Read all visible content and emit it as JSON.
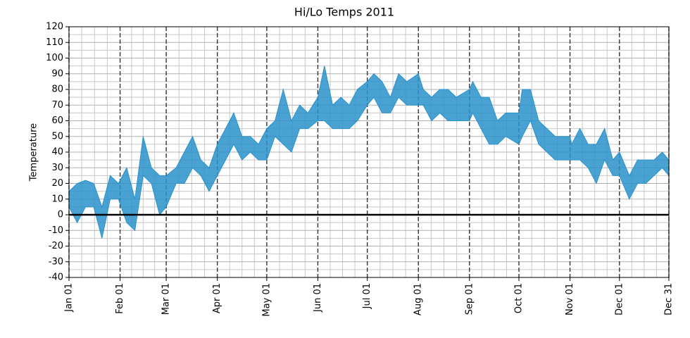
{
  "chart_data": {
    "type": "band",
    "title": "Hi/Lo Temps 2011",
    "ylabel": "Temperature",
    "x": [
      0,
      5,
      10,
      15,
      20,
      25,
      30,
      35,
      40,
      45,
      50,
      55,
      59,
      65,
      70,
      75,
      80,
      85,
      90,
      95,
      100,
      105,
      110,
      115,
      120,
      125,
      130,
      135,
      140,
      145,
      151,
      155,
      160,
      165,
      170,
      175,
      181,
      185,
      190,
      195,
      200,
      205,
      212,
      215,
      220,
      225,
      230,
      235,
      243,
      245,
      250,
      255,
      260,
      265,
      273,
      275,
      280,
      285,
      290,
      295,
      304,
      305,
      310,
      315,
      320,
      325,
      330,
      334,
      340,
      345,
      350,
      355,
      360,
      364
    ],
    "high": [
      15,
      20,
      22,
      20,
      5,
      25,
      20,
      30,
      10,
      50,
      30,
      25,
      25,
      30,
      40,
      50,
      35,
      30,
      45,
      55,
      65,
      50,
      50,
      45,
      55,
      60,
      80,
      60,
      70,
      65,
      75,
      95,
      70,
      75,
      70,
      80,
      85,
      90,
      85,
      75,
      90,
      85,
      90,
      80,
      75,
      80,
      80,
      75,
      80,
      85,
      75,
      75,
      60,
      65,
      65,
      80,
      80,
      60,
      55,
      50,
      50,
      45,
      55,
      45,
      45,
      55,
      35,
      40,
      25,
      35,
      35,
      35,
      40,
      35
    ],
    "low": [
      5,
      -5,
      5,
      5,
      -15,
      10,
      10,
      -5,
      -10,
      25,
      20,
      0,
      5,
      20,
      20,
      30,
      25,
      15,
      25,
      35,
      45,
      35,
      40,
      35,
      35,
      50,
      45,
      40,
      55,
      55,
      60,
      60,
      55,
      55,
      55,
      60,
      70,
      75,
      65,
      65,
      75,
      70,
      70,
      70,
      60,
      65,
      60,
      60,
      60,
      65,
      55,
      45,
      45,
      50,
      45,
      50,
      60,
      45,
      40,
      35,
      35,
      35,
      35,
      30,
      20,
      35,
      25,
      25,
      10,
      20,
      20,
      25,
      30,
      25
    ],
    "color": "#2a92cb",
    "xlim": [
      0,
      364
    ],
    "xticks": [
      {
        "value": 0,
        "label": "Jan 01"
      },
      {
        "value": 31,
        "label": "Feb 01"
      },
      {
        "value": 59,
        "label": "Mar 01"
      },
      {
        "value": 90,
        "label": "Apr 01"
      },
      {
        "value": 120,
        "label": "May 01"
      },
      {
        "value": 151,
        "label": "Jun 01"
      },
      {
        "value": 181,
        "label": "Jul 01"
      },
      {
        "value": 212,
        "label": "Aug 01"
      },
      {
        "value": 243,
        "label": "Sep 01"
      },
      {
        "value": 273,
        "label": "Oct 01"
      },
      {
        "value": 304,
        "label": "Nov 01"
      },
      {
        "value": 334,
        "label": "Dec 01"
      },
      {
        "value": 364,
        "label": "Dec 31"
      }
    ],
    "ylim": [
      -40,
      120
    ],
    "yticks": [
      -40,
      -30,
      -20,
      -10,
      0,
      10,
      20,
      30,
      40,
      50,
      60,
      70,
      80,
      90,
      100,
      110,
      120
    ],
    "hline": 0,
    "grid": true,
    "minor_grid": true
  }
}
